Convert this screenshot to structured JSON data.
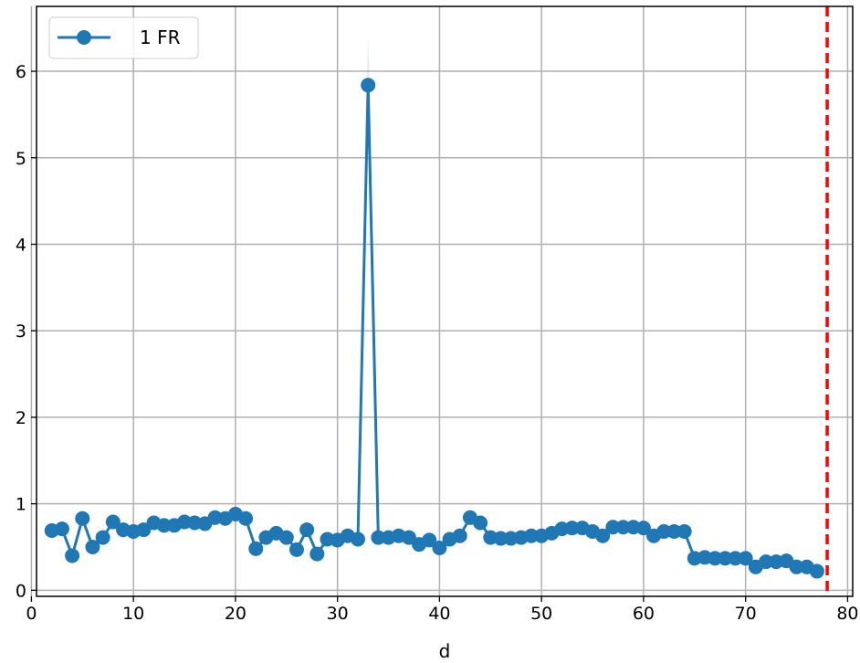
{
  "chart_data": {
    "type": "line",
    "xlabel": "d",
    "ylabel": "",
    "title": "",
    "xlim": [
      0.5,
      80.5
    ],
    "ylim": [
      -0.07,
      6.75
    ],
    "xticks": [
      0,
      10,
      20,
      30,
      40,
      50,
      60,
      70,
      80
    ],
    "yticks": [
      0,
      1,
      2,
      3,
      4,
      5,
      6
    ],
    "grid": true,
    "legend_position": "top-left",
    "series": [
      {
        "name": "1 FR",
        "color": "#1f77b4",
        "marker": "circle",
        "x": [
          2,
          3,
          4,
          5,
          6,
          7,
          8,
          9,
          10,
          11,
          12,
          13,
          14,
          15,
          16,
          17,
          18,
          19,
          20,
          21,
          22,
          23,
          24,
          25,
          26,
          27,
          28,
          29,
          30,
          31,
          32,
          33,
          34,
          35,
          36,
          37,
          38,
          39,
          40,
          41,
          42,
          43,
          44,
          45,
          46,
          47,
          48,
          49,
          50,
          51,
          52,
          53,
          54,
          55,
          56,
          57,
          58,
          59,
          60,
          61,
          62,
          63,
          64,
          65,
          66,
          67,
          68,
          69,
          70,
          71,
          72,
          73,
          74,
          75,
          76,
          77
        ],
        "y": [
          0.69,
          0.71,
          0.4,
          0.83,
          0.5,
          0.61,
          0.79,
          0.7,
          0.68,
          0.7,
          0.78,
          0.75,
          0.75,
          0.79,
          0.78,
          0.77,
          0.84,
          0.83,
          0.88,
          0.83,
          0.48,
          0.61,
          0.66,
          0.61,
          0.47,
          0.7,
          0.42,
          0.59,
          0.58,
          0.63,
          0.59,
          5.84,
          0.61,
          0.61,
          0.63,
          0.61,
          0.53,
          0.58,
          0.49,
          0.59,
          0.63,
          0.84,
          0.78,
          0.61,
          0.6,
          0.6,
          0.61,
          0.63,
          0.63,
          0.66,
          0.71,
          0.72,
          0.72,
          0.68,
          0.63,
          0.73,
          0.73,
          0.73,
          0.72,
          0.63,
          0.68,
          0.68,
          0.68,
          0.37,
          0.38,
          0.37,
          0.37,
          0.37,
          0.37,
          0.27,
          0.33,
          0.33,
          0.34,
          0.27,
          0.27,
          0.22
        ],
        "uncertainty_band": {
          "x": 33,
          "upper": 6.4,
          "lower": 5.3
        }
      }
    ],
    "reference_line": {
      "x": 78,
      "color": "#ff0000",
      "style": "dashed"
    }
  }
}
